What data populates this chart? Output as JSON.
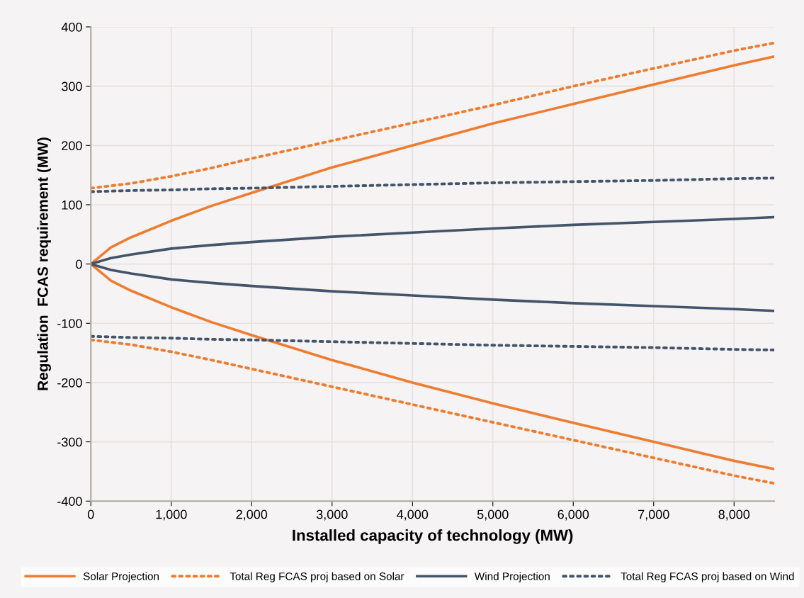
{
  "chart_data": {
    "type": "line",
    "xlabel": "Installed capacity of technology (MW)",
    "ylabel": "Regulation  FCAS requirement (MW)",
    "x": [
      0,
      250,
      500,
      1000,
      1500,
      2000,
      3000,
      4000,
      5000,
      6000,
      7000,
      8000,
      8500
    ],
    "series": [
      {
        "name": "Solar Projection",
        "color": "#ee7d31",
        "line_style": "solid",
        "values": [
          0,
          28,
          45,
          73,
          98,
          120,
          163,
          200,
          237,
          270,
          303,
          335,
          350
        ]
      },
      {
        "color": "#ee7d31",
        "line_style": "solid",
        "values": [
          0,
          -28,
          -45,
          -73,
          -98,
          -120,
          -162,
          -200,
          -235,
          -268,
          -300,
          -332,
          -346
        ]
      },
      {
        "name": "Total Reg FCAS proj based on Solar",
        "color": "#ee7d31",
        "line_style": "dotted",
        "values": [
          128,
          132,
          136,
          148,
          162,
          178,
          208,
          238,
          268,
          300,
          330,
          360,
          373
        ]
      },
      {
        "color": "#ee7d31",
        "line_style": "dotted",
        "values": [
          -128,
          -132,
          -136,
          -148,
          -162,
          -177,
          -207,
          -237,
          -267,
          -297,
          -327,
          -357,
          -370
        ]
      },
      {
        "name": "Wind Projection",
        "color": "#44546a",
        "line_style": "solid",
        "values": [
          0,
          10,
          16,
          26,
          32,
          37,
          46,
          53,
          60,
          66,
          71,
          76,
          79
        ]
      },
      {
        "color": "#44546a",
        "line_style": "solid",
        "values": [
          0,
          -10,
          -16,
          -26,
          -32,
          -37,
          -46,
          -53,
          -60,
          -66,
          -71,
          -76,
          -79
        ]
      },
      {
        "name": "Total Reg FCAS proj based on Wind",
        "color": "#44546a",
        "line_style": "dotted",
        "values": [
          122,
          123,
          124,
          125,
          127,
          128,
          131,
          134,
          137,
          139,
          141,
          144,
          145
        ]
      },
      {
        "color": "#44546a",
        "line_style": "dotted",
        "values": [
          -122,
          -123,
          -124,
          -125,
          -127,
          -128,
          -131,
          -134,
          -137,
          -139,
          -141,
          -144,
          -145
        ]
      }
    ],
    "xlim": [
      0,
      8500
    ],
    "xticks": [
      0,
      {
        "value": 1000,
        "label": "1,000"
      },
      {
        "value": 2000,
        "label": "2,000"
      },
      {
        "value": 3000,
        "label": "3,000"
      },
      {
        "value": 4000,
        "label": "4,000"
      },
      {
        "value": 5000,
        "label": "5,000"
      },
      {
        "value": 6000,
        "label": "6,000"
      },
      {
        "value": 7000,
        "label": "7,000"
      },
      {
        "value": 8000,
        "label": "8,000"
      }
    ],
    "ylim": [
      -400,
      400
    ],
    "yticks": [
      -400,
      -300,
      -200,
      -100,
      0,
      100,
      200,
      300,
      400
    ],
    "grid": true,
    "legend": "bottom",
    "marker": "none"
  }
}
